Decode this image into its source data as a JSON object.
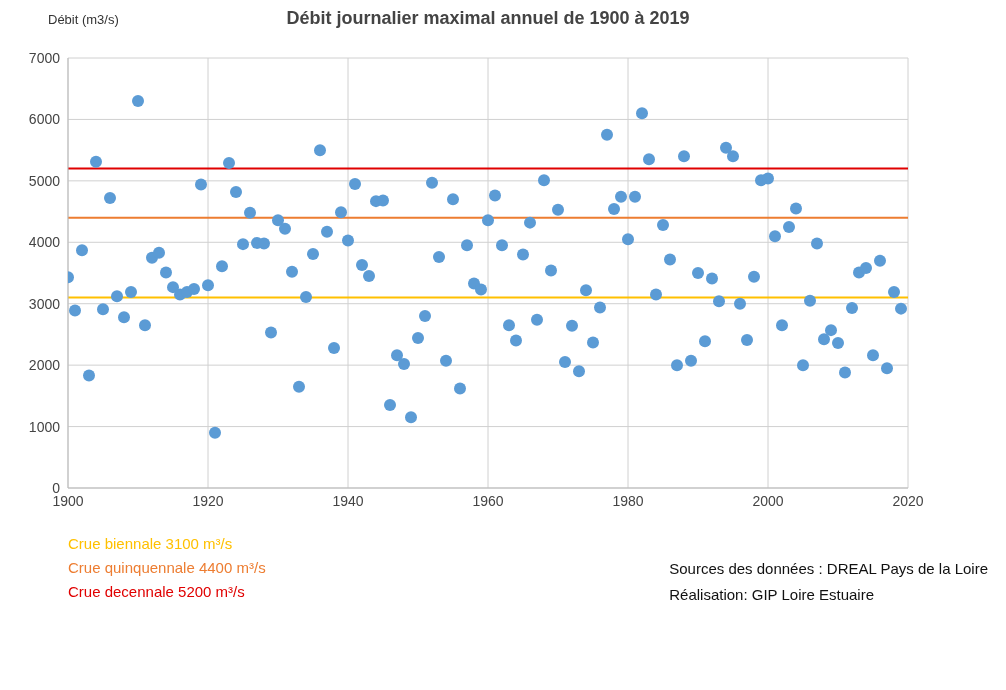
{
  "chart_data": {
    "type": "scatter",
    "title": "Débit journalier maximal annuel de 1900 à 2019",
    "ylabel": "Débit (m3/s)",
    "x": [
      1900,
      1901,
      1902,
      1903,
      1904,
      1905,
      1906,
      1907,
      1908,
      1909,
      1910,
      1911,
      1912,
      1913,
      1914,
      1915,
      1916,
      1917,
      1918,
      1919,
      1920,
      1921,
      1922,
      1923,
      1924,
      1925,
      1926,
      1927,
      1928,
      1929,
      1930,
      1931,
      1932,
      1933,
      1934,
      1935,
      1936,
      1937,
      1938,
      1939,
      1940,
      1941,
      1942,
      1943,
      1944,
      1945,
      1946,
      1947,
      1948,
      1949,
      1950,
      1951,
      1952,
      1953,
      1954,
      1955,
      1956,
      1957,
      1958,
      1959,
      1960,
      1961,
      1962,
      1963,
      1964,
      1965,
      1966,
      1967,
      1968,
      1969,
      1970,
      1971,
      1972,
      1973,
      1974,
      1975,
      1976,
      1977,
      1978,
      1979,
      1980,
      1981,
      1982,
      1983,
      1984,
      1985,
      1986,
      1987,
      1988,
      1989,
      1990,
      1991,
      1992,
      1993,
      1994,
      1995,
      1996,
      1997,
      1998,
      1999,
      2000,
      2001,
      2002,
      2003,
      2004,
      2005,
      2006,
      2007,
      2008,
      2009,
      2010,
      2011,
      2012,
      2013,
      2014,
      2015,
      2016,
      2017,
      2018,
      2019
    ],
    "series": [
      {
        "color": "#5b9bd5",
        "values": [
          3430,
          2890,
          3870,
          1830,
          5310,
          2910,
          4720,
          3120,
          2780,
          3190,
          6300,
          2650,
          3750,
          3830,
          3510,
          3270,
          3150,
          3190,
          3240,
          4940,
          3300,
          900,
          3610,
          5290,
          4820,
          3970,
          4480,
          3990,
          3980,
          2530,
          4360,
          4220,
          3520,
          1650,
          3110,
          3810,
          5500,
          4170,
          2280,
          4490,
          4030,
          4950,
          3630,
          3450,
          4670,
          4680,
          1350,
          2160,
          2020,
          1150,
          2440,
          2800,
          4970,
          3760,
          2070,
          4700,
          1620,
          3950,
          3330,
          3230,
          4360,
          4760,
          3950,
          2650,
          2400,
          3800,
          4320,
          2740,
          5010,
          3540,
          4530,
          2050,
          2640,
          1900,
          3220,
          2370,
          2940,
          5750,
          4540,
          4740,
          4050,
          4740,
          6100,
          5350,
          3150,
          4280,
          3720,
          2000,
          5400,
          2070,
          3500,
          2390,
          3410,
          3040,
          5540,
          5400,
          3000,
          2410,
          3440,
          5010,
          5040,
          4100,
          2650,
          4250,
          4550,
          2000,
          3050,
          3980,
          2420,
          2570,
          2360,
          1880,
          2930,
          3510,
          3580,
          2160,
          3700,
          1950,
          3190,
          2920
        ]
      }
    ],
    "xlim": [
      1900,
      2020
    ],
    "xticks": [
      1900,
      1920,
      1940,
      1960,
      1980,
      2000,
      2020
    ],
    "ylim": [
      0,
      7000
    ],
    "yticks": [
      0,
      1000,
      2000,
      3000,
      4000,
      5000,
      6000,
      7000
    ],
    "grid": true,
    "legend": false,
    "marker": "circle",
    "ref_lines": [
      {
        "axis": "y",
        "value": 3100,
        "label": "Crue biennale 3100 m³/s",
        "color": "#ffc000"
      },
      {
        "axis": "y",
        "value": 4400,
        "label": "Crue quinquennale 4400 m³/s",
        "color": "#ed7d31"
      },
      {
        "axis": "y",
        "value": 5200,
        "label": "Crue decennale 5200 m³/s",
        "color": "#e00000"
      }
    ],
    "annotations": [
      "Sources des données : DREAL Pays de la Loire",
      "Réalisation: GIP Loire Estuaire"
    ]
  }
}
